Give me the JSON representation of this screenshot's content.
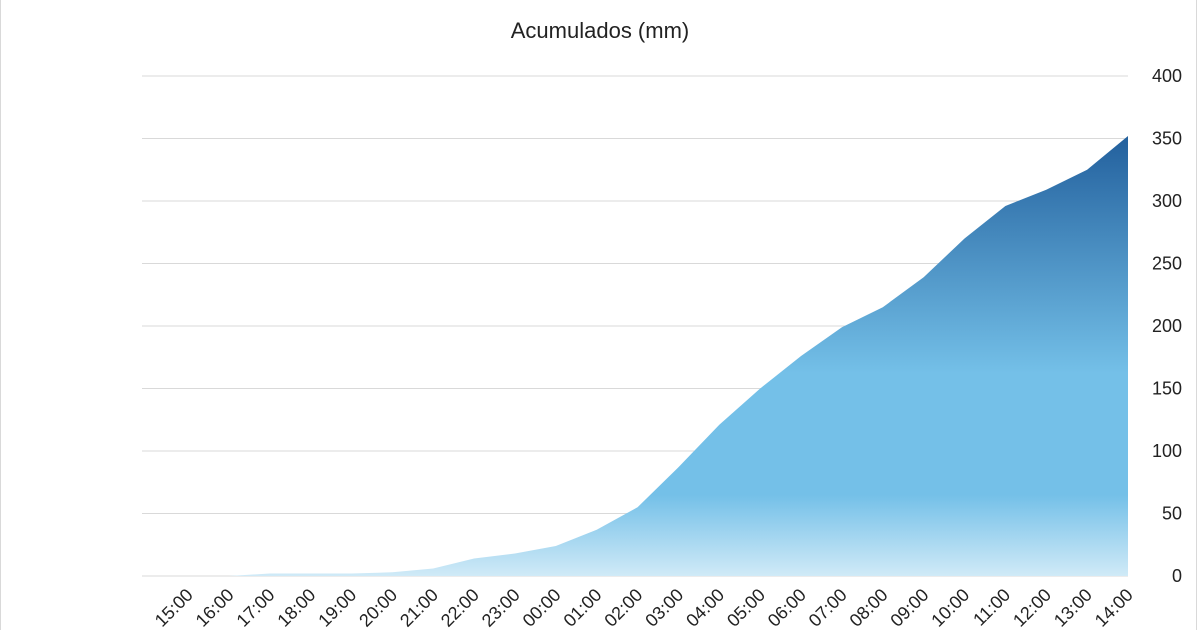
{
  "chart_data": {
    "type": "area",
    "title": "Acumulados (mm)",
    "xlabel": "",
    "ylabel": "",
    "y_axis_position": "right",
    "ylim": [
      0,
      400
    ],
    "yticks": [
      0,
      50,
      100,
      150,
      200,
      250,
      300,
      350,
      400
    ],
    "grid": true,
    "legend": "none",
    "categories": [
      "15:00",
      "16:00",
      "17:00",
      "18:00",
      "19:00",
      "20:00",
      "21:00",
      "22:00",
      "23:00",
      "00:00",
      "01:00",
      "02:00",
      "03:00",
      "04:00",
      "05:00",
      "06:00",
      "07:00",
      "08:00",
      "09:00",
      "10:00",
      "11:00",
      "12:00",
      "13:00",
      "14:00"
    ],
    "series": [
      {
        "values": [
          0,
          0,
          2,
          2,
          2,
          3,
          6,
          14,
          18,
          24,
          37,
          55,
          87,
          121,
          150,
          176,
          199,
          215,
          239,
          270,
          296,
          309,
          325,
          352
        ]
      }
    ],
    "colors": {
      "fill_top": "#1f5c9a",
      "fill_mid": "#74c0e8",
      "fill_bottom": "#d0eaf7",
      "grid": "#d9d9d9",
      "text": "#222222"
    }
  }
}
